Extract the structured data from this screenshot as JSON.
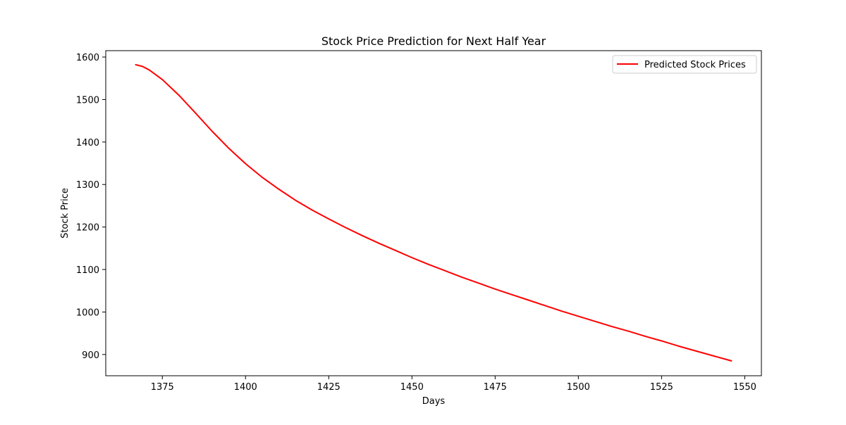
{
  "chart_data": {
    "type": "line",
    "title": "Stock Price Prediction for Next Half Year",
    "xlabel": "Days",
    "ylabel": "Stock Price",
    "xlim": [
      1358,
      1555
    ],
    "ylim": [
      850,
      1615
    ],
    "xticks": [
      1375,
      1400,
      1425,
      1450,
      1475,
      1500,
      1525,
      1550
    ],
    "yticks": [
      900,
      1000,
      1100,
      1200,
      1300,
      1400,
      1500,
      1600
    ],
    "grid": false,
    "legend_position": "upper right",
    "series": [
      {
        "name": "Predicted Stock Prices",
        "color": "#ff0000",
        "x": [
          1367,
          1369,
          1371,
          1375,
          1380,
          1385,
          1390,
          1395,
          1400,
          1405,
          1410,
          1415,
          1420,
          1425,
          1430,
          1435,
          1440,
          1445,
          1450,
          1455,
          1460,
          1465,
          1470,
          1475,
          1480,
          1485,
          1490,
          1495,
          1500,
          1505,
          1510,
          1515,
          1520,
          1525,
          1530,
          1535,
          1540,
          1546
        ],
        "y": [
          1582,
          1578,
          1570,
          1547,
          1510,
          1468,
          1425,
          1385,
          1349,
          1317,
          1289,
          1263,
          1240,
          1219,
          1199,
          1180,
          1162,
          1145,
          1128,
          1112,
          1097,
          1082,
          1068,
          1054,
          1041,
          1028,
          1015,
          1002,
          990,
          978,
          966,
          955,
          943,
          932,
          920,
          909,
          898,
          885
        ]
      }
    ]
  }
}
